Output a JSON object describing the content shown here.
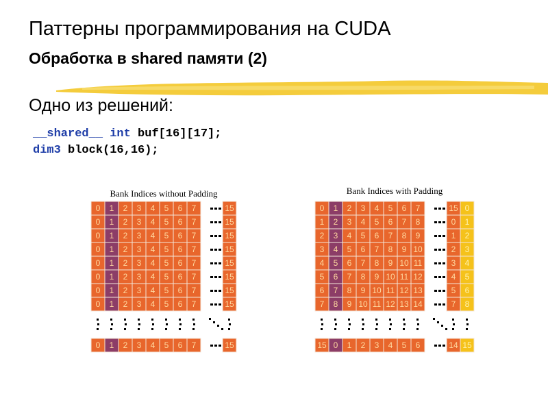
{
  "header": {
    "title": "Паттерны программирования на CUDA",
    "subtitle": "Обработка в shared памяти (2)"
  },
  "body": {
    "intro": "Одно из решений:",
    "code": [
      [
        {
          "text": "__shared__",
          "keyword": true
        },
        {
          "text": " ",
          "keyword": false
        },
        {
          "text": "int",
          "keyword": true
        },
        {
          "text": " buf[16][17];",
          "keyword": false
        }
      ],
      [
        {
          "text": "dim3",
          "keyword": true
        },
        {
          "text": " block(16,16);",
          "keyword": false
        }
      ]
    ]
  },
  "figures": [
    {
      "title": "Bank Indices without Padding",
      "rows": [
        [
          0,
          1,
          2,
          3,
          4,
          5,
          6,
          7,
          15
        ],
        [
          0,
          1,
          2,
          3,
          4,
          5,
          6,
          7,
          15
        ],
        [
          0,
          1,
          2,
          3,
          4,
          5,
          6,
          7,
          15
        ],
        [
          0,
          1,
          2,
          3,
          4,
          5,
          6,
          7,
          15
        ],
        [
          0,
          1,
          2,
          3,
          4,
          5,
          6,
          7,
          15
        ],
        [
          0,
          1,
          2,
          3,
          4,
          5,
          6,
          7,
          15
        ],
        [
          0,
          1,
          2,
          3,
          4,
          5,
          6,
          7,
          15
        ],
        [
          0,
          1,
          2,
          3,
          4,
          5,
          6,
          7,
          15
        ]
      ],
      "last_row": [
        0,
        1,
        2,
        3,
        4,
        5,
        6,
        7,
        15
      ]
    },
    {
      "title": "Bank Indices with Padding",
      "rows": [
        [
          0,
          1,
          2,
          3,
          4,
          5,
          6,
          7,
          15,
          0
        ],
        [
          1,
          2,
          3,
          4,
          5,
          6,
          7,
          8,
          0,
          1
        ],
        [
          2,
          3,
          4,
          5,
          6,
          7,
          8,
          9,
          1,
          2
        ],
        [
          3,
          4,
          5,
          6,
          7,
          8,
          9,
          10,
          2,
          3
        ],
        [
          4,
          5,
          6,
          7,
          8,
          9,
          10,
          11,
          3,
          4
        ],
        [
          5,
          6,
          7,
          8,
          9,
          10,
          11,
          12,
          4,
          5
        ],
        [
          6,
          7,
          8,
          9,
          10,
          11,
          12,
          13,
          5,
          6
        ],
        [
          7,
          8,
          9,
          10,
          11,
          12,
          13,
          14,
          7,
          8
        ]
      ],
      "last_row": [
        15,
        0,
        1,
        2,
        3,
        4,
        5,
        6,
        14,
        15
      ]
    }
  ]
}
